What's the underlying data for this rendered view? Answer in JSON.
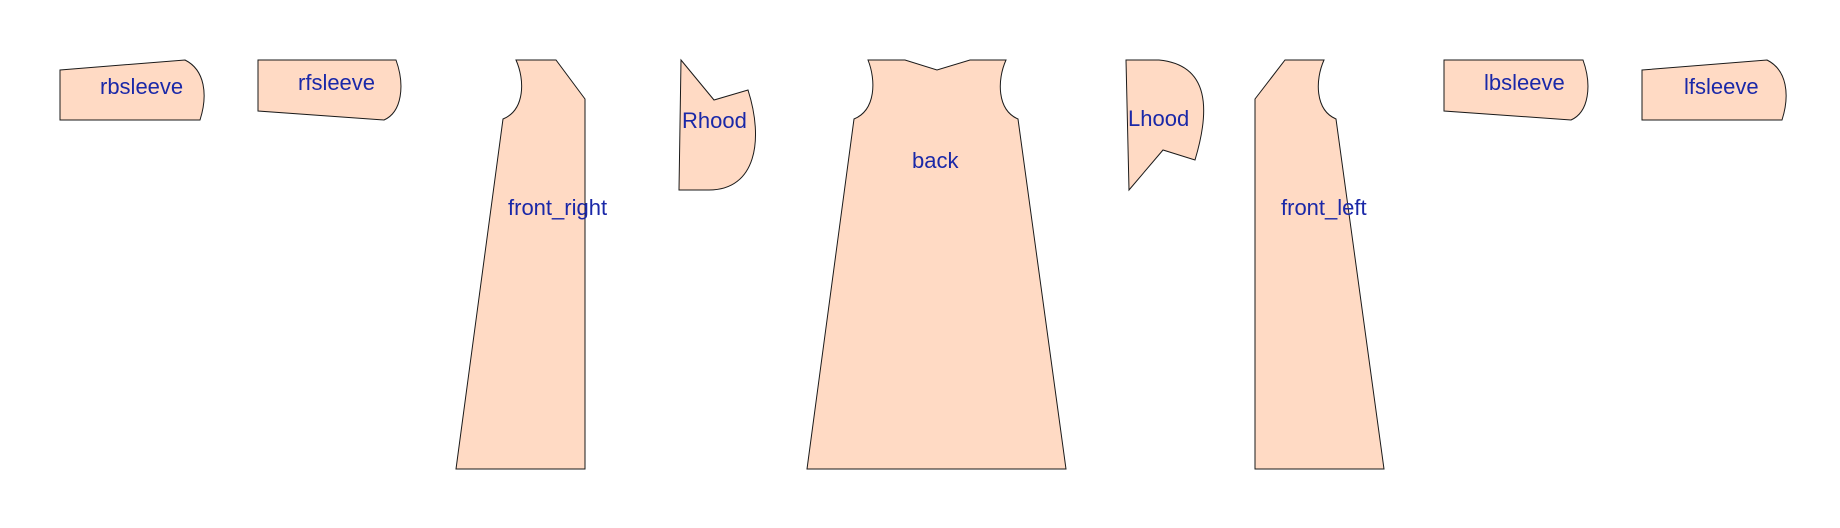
{
  "colors": {
    "fill": "#ffdac4",
    "label": "#1a28a8",
    "stroke": "#1a1a1a"
  },
  "pieces": [
    {
      "id": "rbsleeve",
      "label": "rbsleeve"
    },
    {
      "id": "rfsleeve",
      "label": "rfsleeve"
    },
    {
      "id": "front_right",
      "label": "front_right"
    },
    {
      "id": "rhood",
      "label": "Rhood"
    },
    {
      "id": "back",
      "label": "back"
    },
    {
      "id": "lhood",
      "label": "Lhood"
    },
    {
      "id": "front_left",
      "label": "front_left"
    },
    {
      "id": "lbsleeve",
      "label": "lbsleeve"
    },
    {
      "id": "lfsleeve",
      "label": "lfsleeve"
    }
  ]
}
